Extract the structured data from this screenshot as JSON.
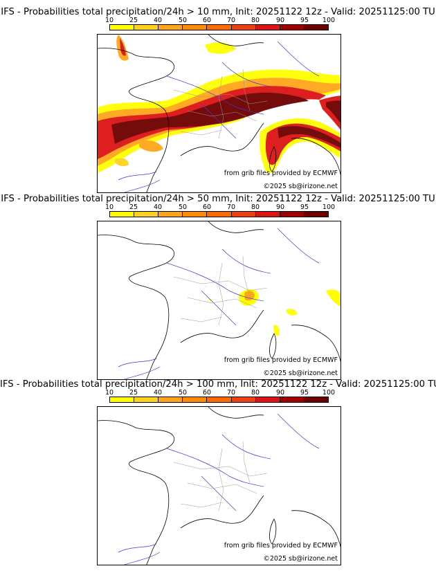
{
  "colorbar": {
    "ticks": [
      "10",
      "25",
      "40",
      "50",
      "60",
      "70",
      "80",
      "90",
      "95",
      "100"
    ],
    "colors": [
      "#ffff00",
      "#ffd21e",
      "#ffa51a",
      "#ff8c00",
      "#ff6a00",
      "#f04010",
      "#dc1414",
      "#a00000",
      "#6e0000"
    ]
  },
  "panels": [
    {
      "title": "IFS - Probabilities total precipitation/24h > 10 mm, Init: 20251122 12z - Valid: 20251125:00 TU",
      "threshold_mm": 10
    },
    {
      "title": "IFS - Probabilities total precipitation/24h > 50 mm, Init: 20251122 12z - Valid: 20251125:00 TU",
      "threshold_mm": 50
    },
    {
      "title": "IFS - Probabilities total precipitation/24h > 100 mm, Init: 20251122 12z - Valid: 20251125:00 TU",
      "threshold_mm": 100
    }
  ],
  "credits": {
    "source": "from grib files provided by ECMWF",
    "copyright": "©2025 sb@irizone.net"
  }
}
